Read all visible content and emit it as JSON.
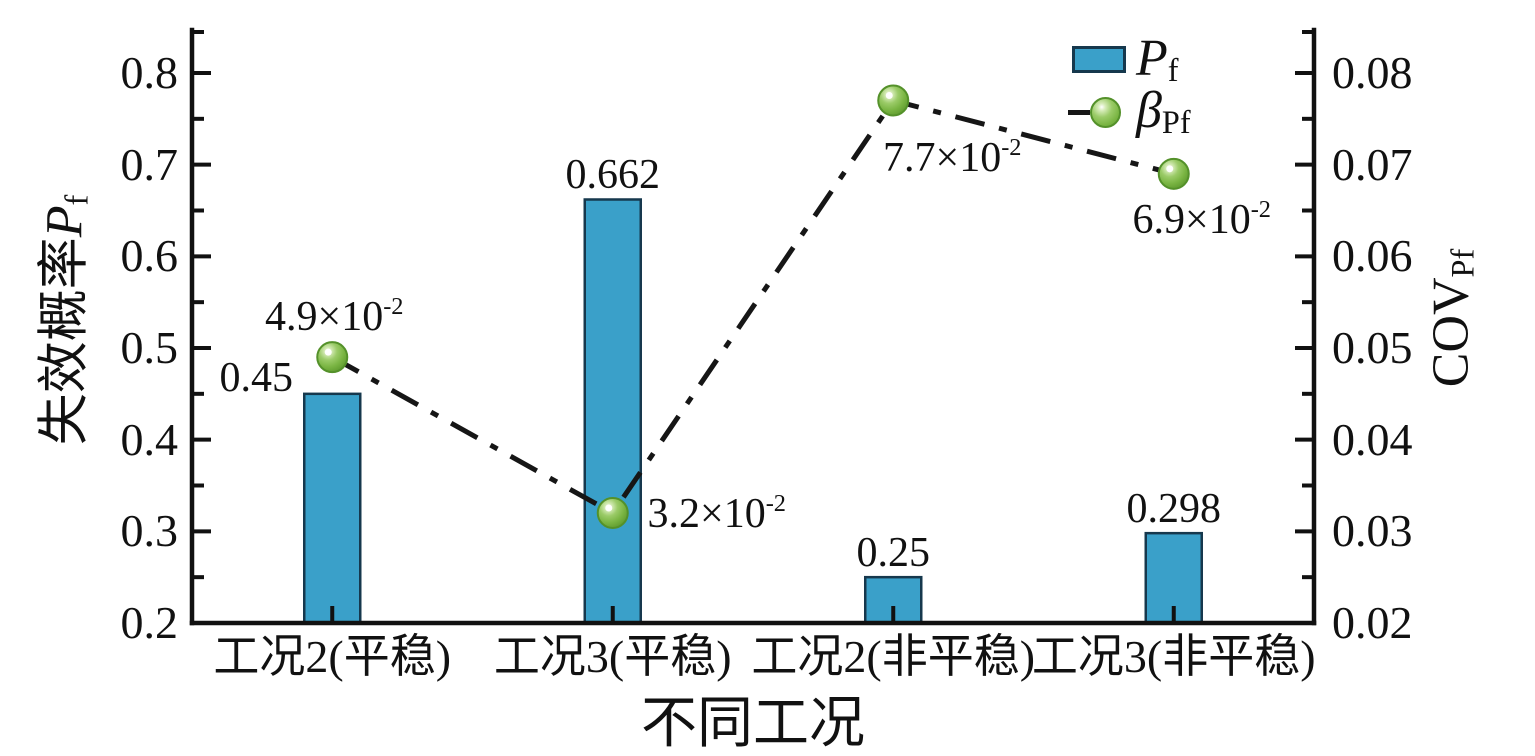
{
  "axes": {
    "xlabel": "不同工况",
    "ylabel_left_text": "失效概率",
    "ylabel_left_sym": "P",
    "ylabel_left_sub": "f",
    "ylabel_right_main": "COV",
    "ylabel_right_sub": "Pf"
  },
  "legend": {
    "position": "top-right",
    "pf": {
      "main": "P",
      "sub": "f"
    },
    "beta": {
      "main": "β",
      "sub": "Pf"
    }
  },
  "colors": {
    "bar_fill": "#3AA0C9",
    "bar_border": "#16384d",
    "line": "#161616",
    "marker_green": "#7ab543",
    "marker_border": "#54912a",
    "axis": "#111111",
    "text": "#111111"
  },
  "chart_data": {
    "type": "bar+line",
    "title": "",
    "xlabel": "不同工况",
    "ylabel_left": "失效概率Pf",
    "ylabel_right": "COVPf",
    "grid": false,
    "legend_position": "top-right",
    "categories": [
      "工况2(平稳)",
      "工况3(平稳)",
      "工况2(非平稳)",
      "工况3(非平稳)"
    ],
    "series": [
      {
        "name": "Pf",
        "type": "bar",
        "axis": "left",
        "values": [
          0.45,
          0.662,
          0.25,
          0.298
        ],
        "value_labels": [
          "0.45",
          "0.662",
          "0.25",
          "0.298"
        ],
        "label_placement": [
          "left",
          "above",
          "above",
          "above"
        ]
      },
      {
        "name": "βPf",
        "type": "line",
        "axis": "right",
        "line_style": "dash-dot",
        "values": [
          0.049,
          0.032,
          0.077,
          0.069
        ],
        "value_labels": [
          {
            "base": "4.9×10",
            "sup": "-2"
          },
          {
            "base": "3.2×10",
            "sup": "-2"
          },
          {
            "base": "7.7×10",
            "sup": "-2"
          },
          {
            "base": "6.9×10",
            "sup": "-2"
          }
        ],
        "label_placement": [
          "above",
          "right",
          "below-right",
          "below"
        ]
      }
    ],
    "y_left": {
      "min": 0.2,
      "max": 0.8469,
      "tick_values": [
        0.2,
        0.3,
        0.4,
        0.5,
        0.6,
        0.7,
        0.8
      ],
      "tick_labels": [
        "0.2",
        "0.3",
        "0.4",
        "0.5",
        "0.6",
        "0.7",
        "0.8"
      ],
      "minor_ticks": true
    },
    "y_right": {
      "min": 0.02,
      "max": 0.08469,
      "tick_values": [
        0.02,
        0.03,
        0.04,
        0.05,
        0.06,
        0.07,
        0.08
      ],
      "tick_labels": [
        "0.02",
        "0.03",
        "0.04",
        "0.05",
        "0.06",
        "0.07",
        "0.08"
      ],
      "minor_ticks": true
    }
  }
}
